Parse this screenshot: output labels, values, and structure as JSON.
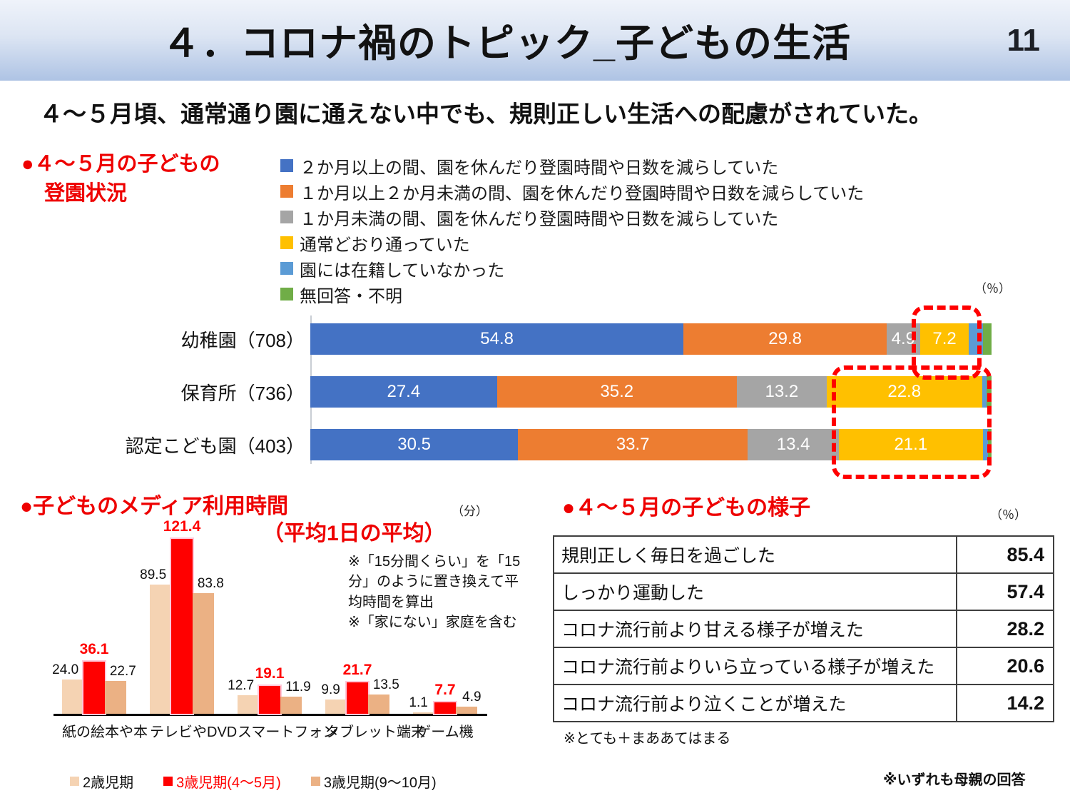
{
  "header": {
    "title": "４．コロナ禍のトピック_子どもの生活",
    "page_number": "11"
  },
  "subtitle": "４～５月頃、通常通り園に通えない中でも、規則正しい生活への配慮がされていた。",
  "colors": {
    "header_gradient_top": "#EFF3FA",
    "header_gradient_bottom": "#AEC3E4",
    "accent_red": "#EE0000",
    "highlight_dashed_red": "#FF0000",
    "bar_blue": "#4472C4",
    "bar_orange": "#ED7D31",
    "bar_gray": "#A5A5A5",
    "bar_yellow": "#FFC000",
    "bar_lightblue": "#5B9BD5",
    "bar_green": "#70AD47",
    "media_peach_light": "#F5D3B3",
    "media_red": "#FF0000",
    "media_peach_dark": "#EBB184"
  },
  "attendance": {
    "heading_line1": "●４～５月の子どもの",
    "heading_line2": "登園状況",
    "unit": "（％）"
  },
  "media": {
    "heading": "●子どものメディア利用時間",
    "heading_sub": "（平均1日の平均）",
    "unit": "（分）",
    "notes": [
      "※「15分間くらい」を「15分」のように置き換えて平均時間を算出",
      "※「家にない」家庭を含む"
    ]
  },
  "behavior": {
    "heading": "●４～５月の子どもの様子",
    "unit": "（％）",
    "rows": [
      {
        "label": "規則正しく毎日を過ごした",
        "value": "85.4"
      },
      {
        "label": "しっかり運動した",
        "value": "57.4"
      },
      {
        "label": "コロナ流行前より甘える様子が増えた",
        "value": "28.2"
      },
      {
        "label": "コロナ流行前よりいら立っている様子が増えた",
        "value": "20.6"
      },
      {
        "label": "コロナ流行前より泣くことが増えた",
        "value": "14.2"
      }
    ],
    "note": "※とても＋まああてはまる"
  },
  "footer_note": "※いずれも母親の回答",
  "chart_data": [
    {
      "type": "bar",
      "variant": "stacked-horizontal",
      "title": "４～５月の子どもの登園状況",
      "unit": "%",
      "xlim": [
        0,
        100
      ],
      "categories": [
        "幼稚園（708）",
        "保育所（736）",
        "認定こども園（403）"
      ],
      "series": [
        {
          "name": "２か月以上の間、園を休んだり登園時間や日数を減らしていた",
          "color": "#4472C4",
          "values": [
            54.8,
            27.4,
            30.5
          ],
          "labeled": true
        },
        {
          "name": "１か月以上２か月未満の間、園を休んだり登園時間や日数を減らしていた",
          "color": "#ED7D31",
          "values": [
            29.8,
            35.2,
            33.7
          ],
          "labeled": true
        },
        {
          "name": "１か月未満の間、園を休んだり登園時間や日数を減らしていた",
          "color": "#A5A5A5",
          "values": [
            4.9,
            13.2,
            13.4
          ],
          "labeled": true
        },
        {
          "name": "通常どおり通っていた",
          "color": "#FFC000",
          "values": [
            7.2,
            22.8,
            21.1
          ],
          "labeled": true
        },
        {
          "name": "園には在籍していなかった",
          "color": "#5B9BD5",
          "values": [
            2.0,
            0.7,
            0.8
          ],
          "labeled": false
        },
        {
          "name": "無回答・不明",
          "color": "#70AD47",
          "values": [
            1.3,
            0.7,
            0.5
          ],
          "labeled": false
        }
      ],
      "legend_position": "top",
      "highlighted_segments": "通常どおり通っていた (red dashed boxes)"
    },
    {
      "type": "bar",
      "variant": "grouped-vertical",
      "title": "子どものメディア利用時間（平均1日の平均）",
      "unit": "分",
      "ylim": [
        0,
        130
      ],
      "categories": [
        "紙の絵本や本",
        "テレビやDVD",
        "スマートフォン",
        "タブレット端末",
        "ゲーム機"
      ],
      "series": [
        {
          "name": "2歳児期",
          "color": "#F5D3B3",
          "label_color": "#111111",
          "values": [
            24.0,
            89.5,
            12.7,
            9.9,
            1.1
          ]
        },
        {
          "name": "3歳児期(4～5月)",
          "color": "#FF0000",
          "label_color": "#FF0000",
          "values": [
            36.1,
            121.4,
            19.1,
            21.7,
            7.7
          ]
        },
        {
          "name": "3歳児期(9～10月)",
          "color": "#EBB184",
          "label_color": "#111111",
          "values": [
            22.7,
            83.8,
            11.9,
            13.5,
            4.9
          ]
        }
      ],
      "legend_position": "bottom"
    }
  ]
}
